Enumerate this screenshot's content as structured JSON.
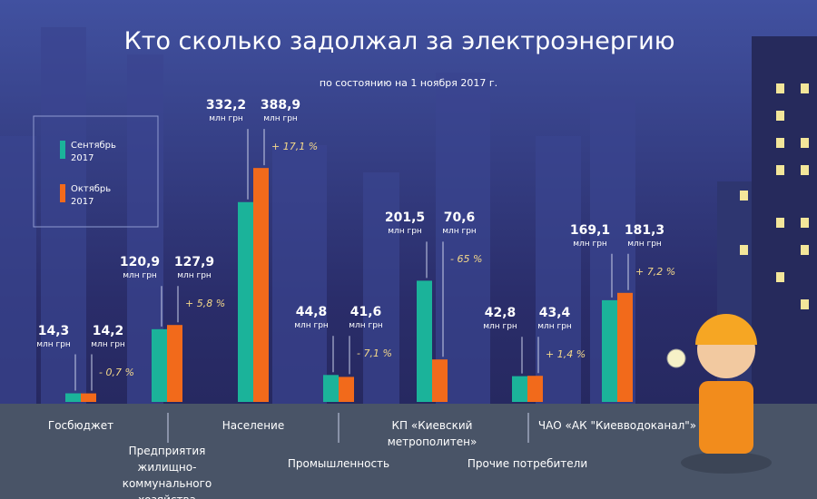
{
  "chart_data": {
    "type": "bar",
    "title": "Кто сколько задолжал за электроэнергию",
    "subtitle": "по состоянию на 1 ноября 2017 г.",
    "unit": "млн грн",
    "categories": [
      "Госбюджет",
      "Предприятия жилищно-коммунального хозяйства",
      "Население",
      "Промышленность",
      "КП «Киевский метрополитен»",
      "Прочие потребители",
      "ЧАО «АК \"Киевводоканал\"»"
    ],
    "series": [
      {
        "name": "Сентябрь 2017",
        "color": "#1bb39a",
        "values": [
          14.3,
          120.9,
          332.2,
          44.8,
          201.5,
          42.8,
          169.1
        ],
        "value_labels": [
          "14,3",
          "120,9",
          "332,2",
          "44,8",
          "201,5",
          "42,8",
          "169,1"
        ]
      },
      {
        "name": "Октябрь 2017",
        "color": "#f26a1b",
        "values": [
          14.2,
          127.9,
          388.9,
          41.6,
          70.6,
          43.4,
          181.3
        ],
        "value_labels": [
          "14,2",
          "127,9",
          "388,9",
          "41,6",
          "70,6",
          "43,4",
          "181,3"
        ]
      }
    ],
    "change_labels": [
      "- 0,7 %",
      "+ 5,8 %",
      "+ 17,1 %",
      "- 7,1 %",
      "- 65 %",
      "+ 1,4 %",
      "+ 7,2 %"
    ]
  }
}
